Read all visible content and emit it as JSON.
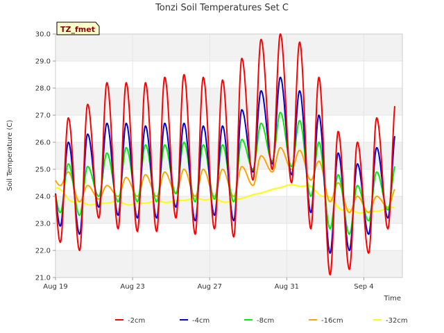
{
  "chart_data": {
    "type": "line",
    "title": "Tonzi Soil Temperatures Set C",
    "xlabel": "Time",
    "ylabel": "Soil Temperature (C)",
    "badge": "TZ_fmet",
    "xlim": [
      0,
      18
    ],
    "ylim": [
      21.0,
      30.0
    ],
    "yticks": [
      "21.0",
      "22.0",
      "23.0",
      "24.0",
      "25.0",
      "26.0",
      "27.0",
      "28.0",
      "29.0",
      "30.0"
    ],
    "xticks": [
      {
        "label": "Aug 19",
        "day": 0
      },
      {
        "label": "Aug 23",
        "day": 4
      },
      {
        "label": "Aug 27",
        "day": 8
      },
      {
        "label": "Aug 31",
        "day": 12
      },
      {
        "label": "Sep 4",
        "day": 16
      }
    ],
    "grid": true,
    "legend_position": "bottom",
    "series": [
      {
        "name": "-2cm",
        "color": "#ff0000",
        "daily_max": [
          26.9,
          27.4,
          28.2,
          28.2,
          28.2,
          28.4,
          28.5,
          28.4,
          28.3,
          29.1,
          29.8,
          30.0,
          29.7,
          28.4,
          26.4,
          26.0,
          26.9,
          27.6,
          28.2
        ],
        "daily_min": [
          22.3,
          22.0,
          23.2,
          22.8,
          22.7,
          22.7,
          23.2,
          22.6,
          22.8,
          22.5,
          24.6,
          25.0,
          24.5,
          22.8,
          21.1,
          21.3,
          21.9,
          22.8,
          24.4
        ]
      },
      {
        "name": "-4cm",
        "color": "#0000cc",
        "daily_max": [
          26.0,
          26.3,
          26.7,
          26.7,
          26.6,
          26.7,
          26.7,
          26.6,
          26.6,
          27.2,
          27.9,
          28.4,
          27.9,
          27.0,
          25.6,
          25.2,
          25.8,
          26.4,
          26.6
        ],
        "daily_min": [
          22.9,
          22.6,
          23.6,
          23.3,
          23.2,
          23.2,
          23.6,
          23.1,
          23.3,
          23.1,
          24.9,
          25.2,
          24.8,
          23.4,
          21.9,
          22.0,
          22.6,
          23.2,
          24.6
        ]
      },
      {
        "name": "-8cm",
        "color": "#00ee00",
        "daily_max": [
          25.2,
          25.1,
          25.6,
          25.8,
          25.9,
          25.9,
          26.0,
          25.9,
          25.9,
          26.1,
          26.7,
          27.1,
          26.8,
          26.0,
          24.8,
          24.4,
          24.9,
          25.2,
          25.6
        ],
        "daily_min": [
          23.4,
          23.3,
          24.0,
          23.8,
          23.8,
          23.8,
          24.1,
          23.8,
          23.9,
          23.8,
          25.0,
          25.3,
          25.1,
          24.0,
          22.8,
          22.6,
          23.1,
          23.5,
          24.9
        ]
      },
      {
        "name": "-16cm",
        "color": "#ffa500",
        "daily_max": [
          24.9,
          24.4,
          24.4,
          24.7,
          24.8,
          24.9,
          25.0,
          25.0,
          25.0,
          25.1,
          25.5,
          25.8,
          25.7,
          25.3,
          24.5,
          24.0,
          24.0,
          24.3,
          24.6
        ],
        "daily_min": [
          24.4,
          23.8,
          23.9,
          24.0,
          24.0,
          24.0,
          24.1,
          24.0,
          24.0,
          24.0,
          24.4,
          24.9,
          25.0,
          24.6,
          23.8,
          23.4,
          23.4,
          23.6,
          24.4
        ]
      },
      {
        "name": "-32cm",
        "color": "#ffff00",
        "days": [
          0,
          1,
          2,
          3,
          4,
          5,
          6,
          7,
          8,
          9,
          10,
          11,
          12,
          13,
          14,
          15,
          16,
          17,
          17.6
        ],
        "values": [
          24.3,
          23.8,
          23.7,
          23.8,
          23.7,
          23.8,
          23.8,
          23.9,
          23.9,
          23.8,
          24.0,
          24.2,
          24.4,
          24.4,
          24.0,
          23.5,
          23.4,
          23.5,
          23.6
        ]
      }
    ]
  }
}
